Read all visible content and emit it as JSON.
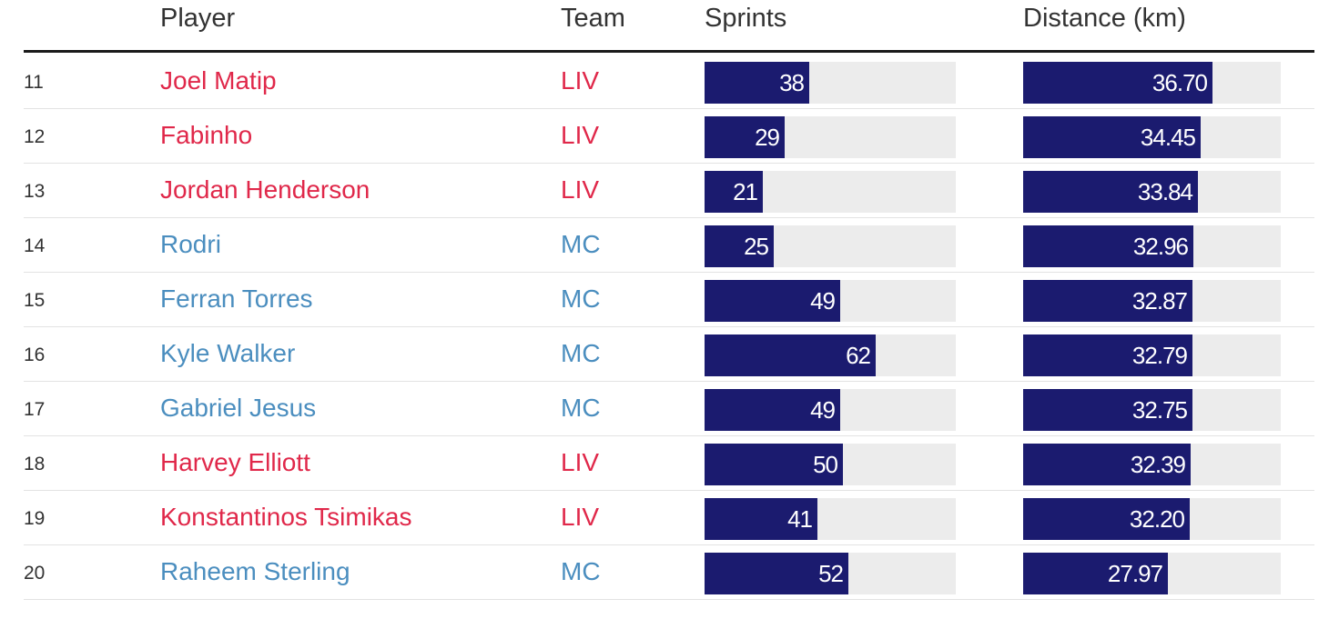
{
  "colors": {
    "LIV": "#e0284a",
    "MC": "#4b8ebf",
    "bar": "#1b1b6f",
    "track": "#ececec"
  },
  "headers": {
    "player": "Player",
    "team": "Team",
    "sprints": "Sprints",
    "distance": "Distance (km)"
  },
  "chart_data": {
    "type": "table",
    "columns": [
      "",
      "Player",
      "Team",
      "Sprints",
      "Distance (km)"
    ],
    "sprints_max": 91,
    "distance_max": 49.9,
    "rows": [
      {
        "rank": "11",
        "player": "Joel Matip",
        "team": "LIV",
        "sprints": 38,
        "sprints_label": "38",
        "distance": 36.7,
        "distance_label": "36.70"
      },
      {
        "rank": "12",
        "player": "Fabinho",
        "team": "LIV",
        "sprints": 29,
        "sprints_label": "29",
        "distance": 34.45,
        "distance_label": "34.45"
      },
      {
        "rank": "13",
        "player": "Jordan Henderson",
        "team": "LIV",
        "sprints": 21,
        "sprints_label": "21",
        "distance": 33.84,
        "distance_label": "33.84"
      },
      {
        "rank": "14",
        "player": "Rodri",
        "team": "MC",
        "sprints": 25,
        "sprints_label": "25",
        "distance": 32.96,
        "distance_label": "32.96"
      },
      {
        "rank": "15",
        "player": "Ferran Torres",
        "team": "MC",
        "sprints": 49,
        "sprints_label": "49",
        "distance": 32.87,
        "distance_label": "32.87"
      },
      {
        "rank": "16",
        "player": "Kyle Walker",
        "team": "MC",
        "sprints": 62,
        "sprints_label": "62",
        "distance": 32.79,
        "distance_label": "32.79"
      },
      {
        "rank": "17",
        "player": "Gabriel Jesus",
        "team": "MC",
        "sprints": 49,
        "sprints_label": "49",
        "distance": 32.75,
        "distance_label": "32.75"
      },
      {
        "rank": "18",
        "player": "Harvey Elliott",
        "team": "LIV",
        "sprints": 50,
        "sprints_label": "50",
        "distance": 32.39,
        "distance_label": "32.39"
      },
      {
        "rank": "19",
        "player": "Konstantinos Tsimikas",
        "team": "LIV",
        "sprints": 41,
        "sprints_label": "41",
        "distance": 32.2,
        "distance_label": "32.20"
      },
      {
        "rank": "20",
        "player": "Raheem Sterling",
        "team": "MC",
        "sprints": 52,
        "sprints_label": "52",
        "distance": 27.97,
        "distance_label": "27.97"
      }
    ]
  }
}
